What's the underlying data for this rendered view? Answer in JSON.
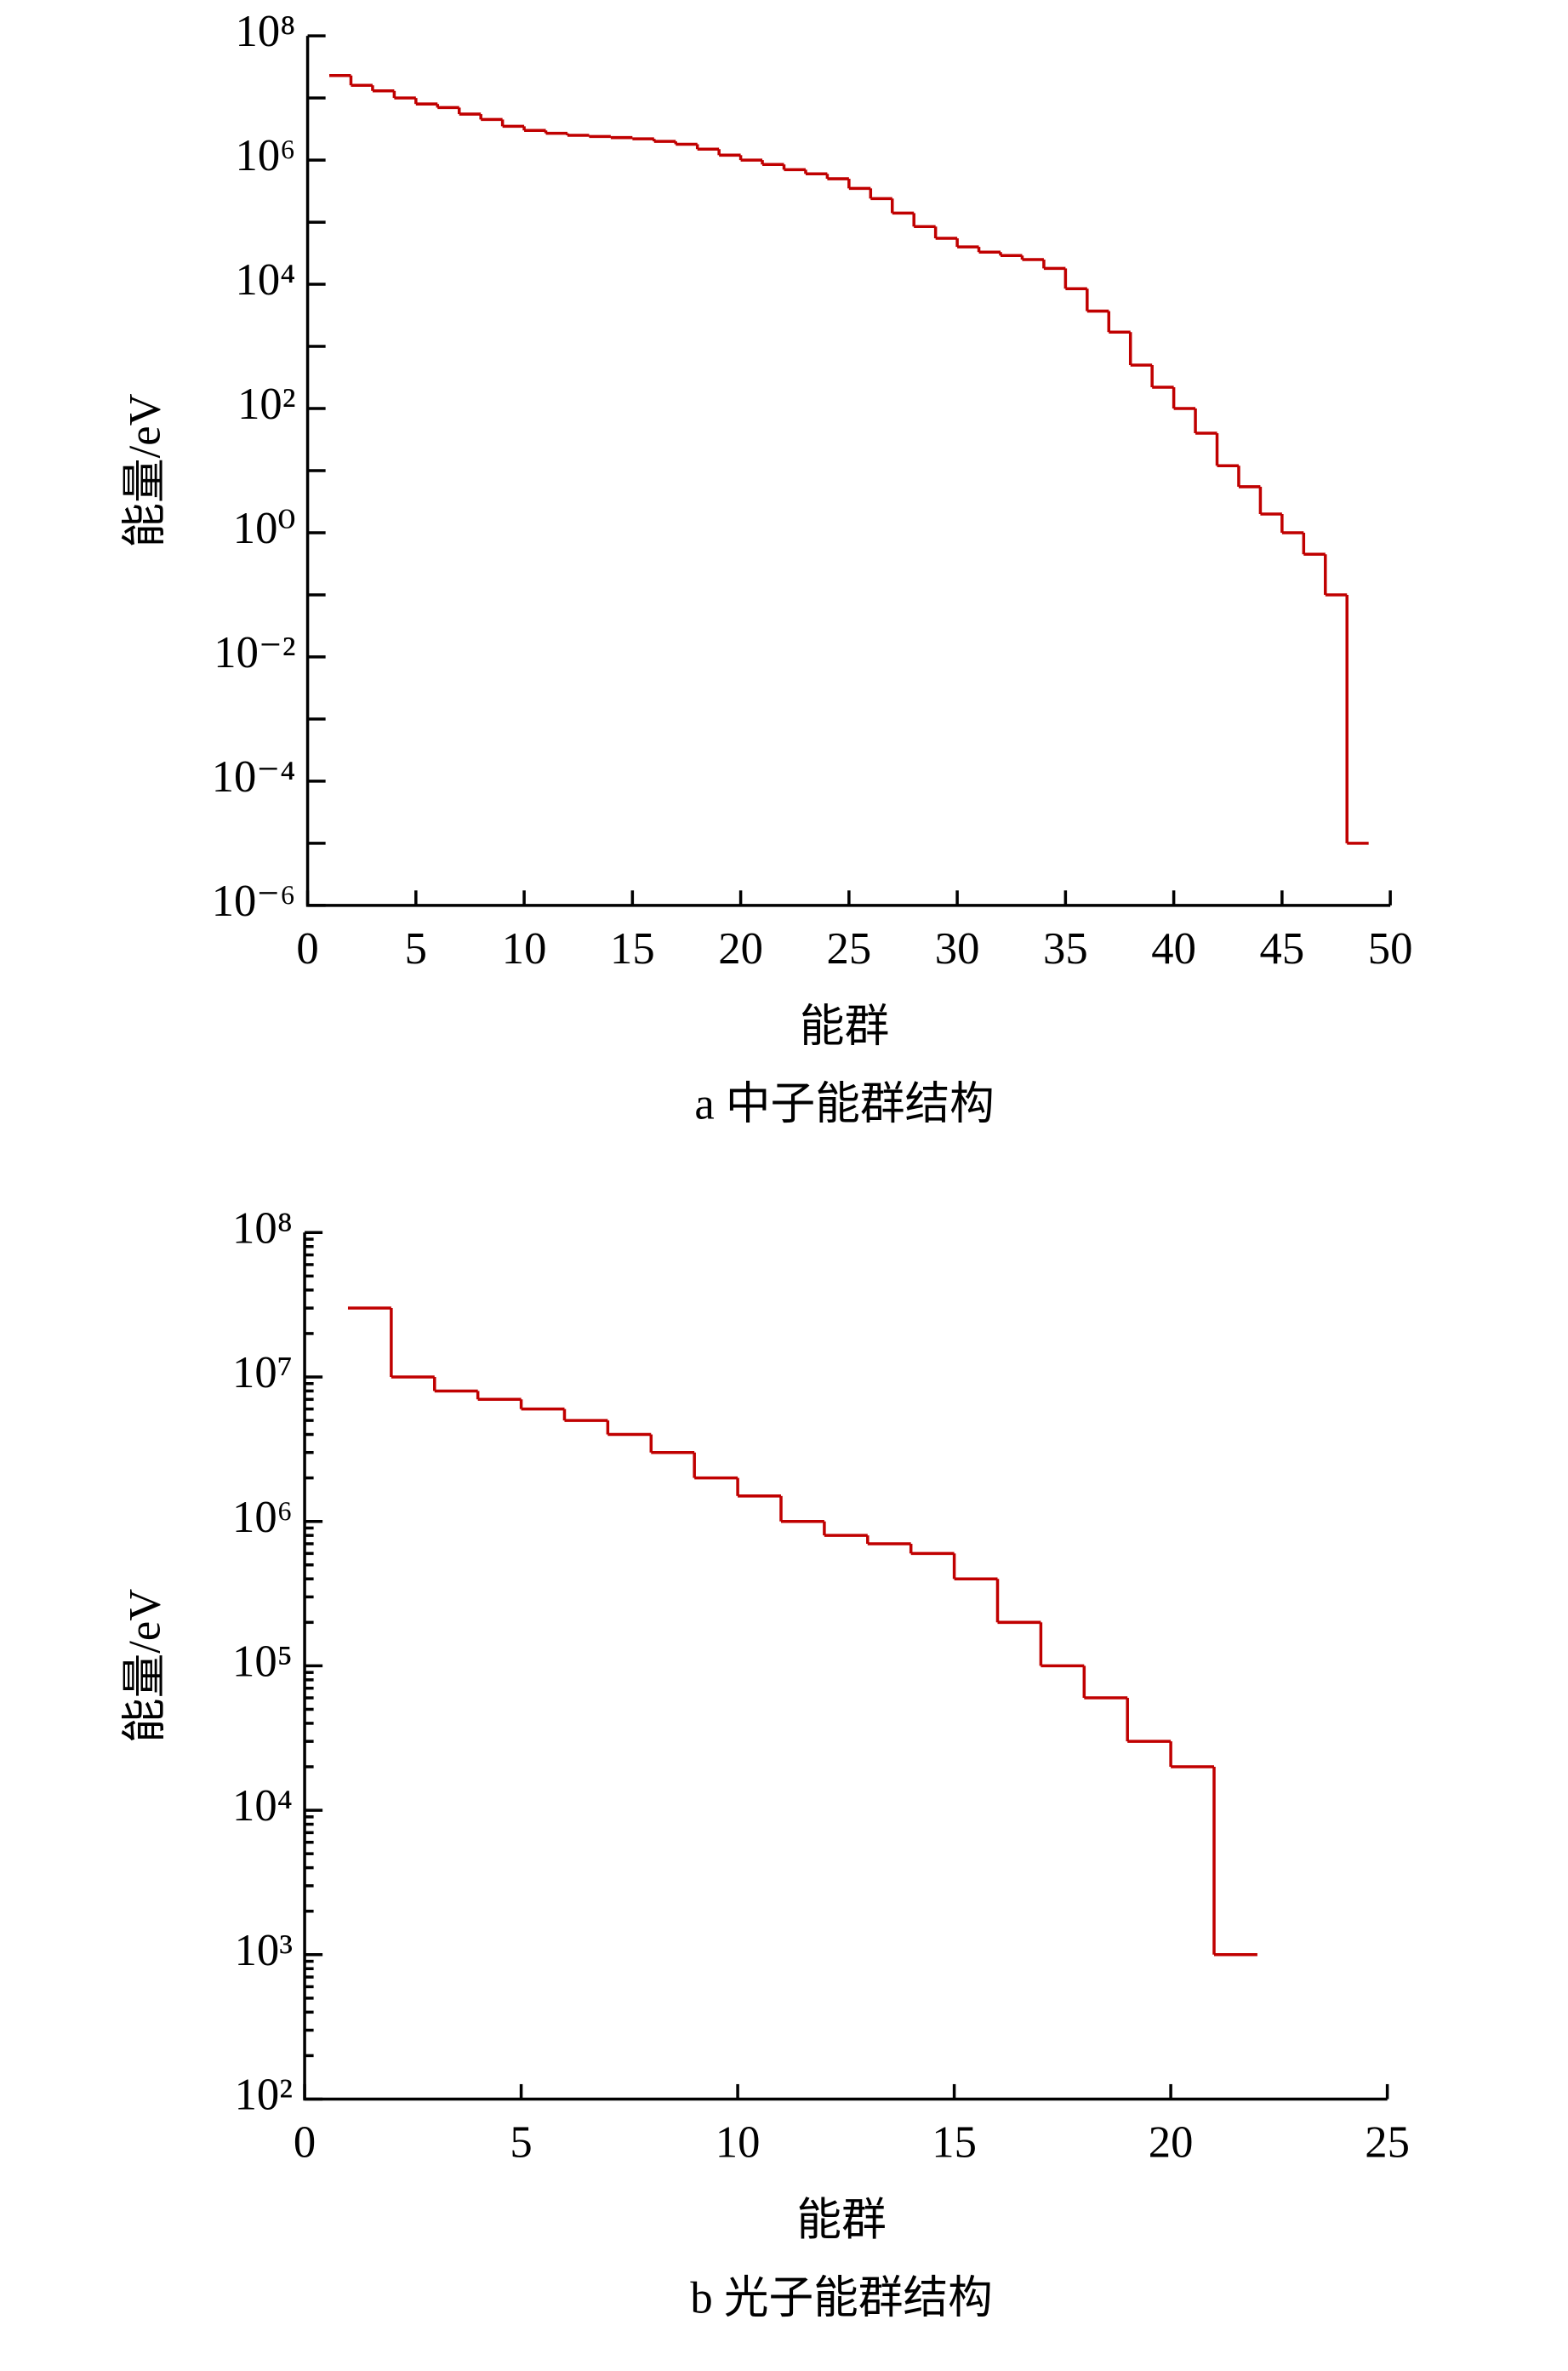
{
  "chart_data": [
    {
      "type": "histogram",
      "caption": "a  中子能群结构",
      "xlabel": "能群",
      "ylabel": "能量/eV",
      "color": "#c00000",
      "log_y": true,
      "minor_ticks": true,
      "bins": [
        1,
        2,
        3,
        4,
        5,
        6,
        7,
        8,
        9,
        10,
        11,
        12,
        13,
        14,
        15,
        16,
        17,
        18,
        19,
        20,
        21,
        22,
        23,
        24,
        25,
        26,
        27,
        28,
        29,
        30,
        31,
        32,
        33,
        34,
        35,
        36,
        37,
        38,
        39,
        40,
        41,
        42,
        43,
        44,
        45,
        46,
        47,
        48,
        49
      ],
      "values": [
        23000000,
        16000000,
        13000000,
        10000000,
        8000000,
        7000000,
        5500000,
        4500000,
        3500000,
        3000000,
        2700000,
        2500000,
        2400000,
        2300000,
        2200000,
        2000000,
        1800000,
        1500000,
        1200000,
        1000000,
        850000,
        700000,
        600000,
        500000,
        350000,
        240000,
        140000,
        85000,
        55000,
        40000,
        33000,
        29000,
        25000,
        18000,
        8500,
        3700,
        1700,
        500,
        220,
        100,
        40,
        12,
        5.5,
        2,
        1,
        0.45,
        0.1,
        1e-05
      ],
      "xlim": [
        0,
        50
      ],
      "xticks": [
        0,
        5,
        10,
        15,
        20,
        25,
        30,
        35,
        40,
        45,
        50
      ],
      "ylim": [
        1e-06,
        100000000
      ],
      "yticks": [
        {
          "value": 1e-06,
          "label": "10⁻⁶"
        },
        {
          "value": 0.0001,
          "label": "10⁻⁴"
        },
        {
          "value": 0.01,
          "label": "10⁻²"
        },
        {
          "value": 1,
          "label": "10⁰"
        },
        {
          "value": 100,
          "label": "10²"
        },
        {
          "value": 10000,
          "label": "10⁴"
        },
        {
          "value": 1000000,
          "label": "10⁶"
        },
        {
          "value": 100000000,
          "label": "10⁸"
        }
      ]
    },
    {
      "type": "histogram",
      "caption": "b  光子能群结构",
      "xlabel": "能群",
      "ylabel": "能量/eV",
      "color": "#c00000",
      "log_y": true,
      "minor_ticks": true,
      "bins": [
        1,
        2,
        3,
        4,
        5,
        6,
        7,
        8,
        9,
        10,
        11,
        12,
        13,
        14,
        15,
        16,
        17,
        18,
        19,
        20,
        21,
        22
      ],
      "values": [
        30000000,
        10000000,
        8000000,
        7000000,
        6000000,
        5000000,
        4000000,
        3000000,
        2000000,
        1500000,
        1000000,
        800000,
        700000,
        600000,
        400000,
        200000,
        100000,
        60000,
        30000,
        20000,
        1000
      ],
      "xlim": [
        0,
        25
      ],
      "xticks": [
        0,
        5,
        10,
        15,
        20,
        25
      ],
      "ylim": [
        100,
        100000000
      ],
      "yticks": [
        {
          "value": 100,
          "label": "10²"
        },
        {
          "value": 1000,
          "label": "10³"
        },
        {
          "value": 10000,
          "label": "10⁴"
        },
        {
          "value": 100000,
          "label": "10⁵"
        },
        {
          "value": 1000000,
          "label": "10⁶"
        },
        {
          "value": 10000000,
          "label": "10⁷"
        },
        {
          "value": 100000000,
          "label": "10⁸"
        }
      ]
    }
  ]
}
